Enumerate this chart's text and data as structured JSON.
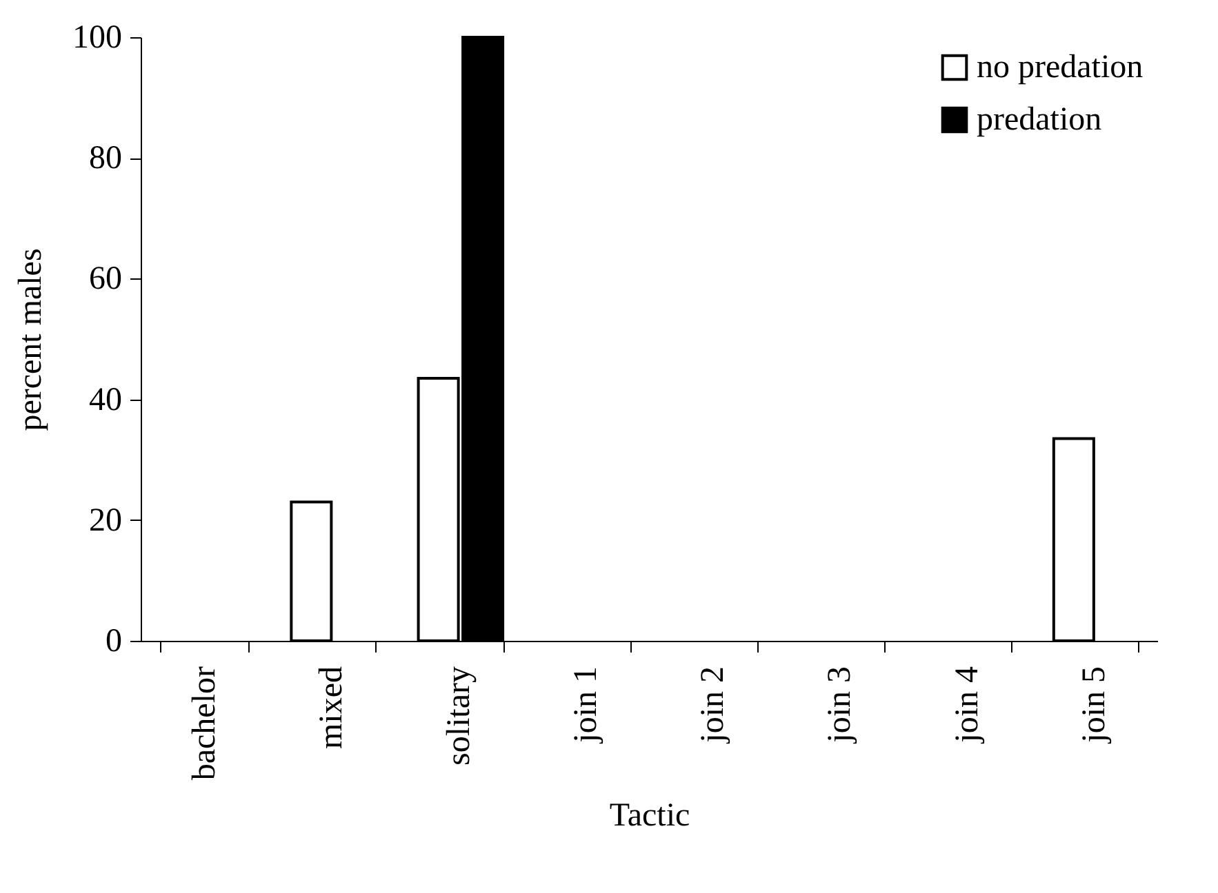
{
  "chart_data": {
    "type": "bar",
    "xlabel": "Tactic",
    "ylabel": "percent males",
    "categories": [
      "bachelor",
      "mixed",
      "solitary",
      "join 1",
      "join 2",
      "join 3",
      "join 4",
      "join 5"
    ],
    "series": [
      {
        "name": "no predation",
        "color": "#ffffff",
        "values": [
          null,
          23,
          43.5,
          null,
          null,
          null,
          null,
          33.5
        ]
      },
      {
        "name": "predation",
        "color": "#000000",
        "values": [
          null,
          null,
          100,
          null,
          null,
          null,
          null,
          null
        ]
      }
    ],
    "ylim": [
      0,
      100
    ],
    "yticks": [
      0,
      20,
      40,
      60,
      80,
      100
    ],
    "grid": false,
    "legend": "top right"
  }
}
